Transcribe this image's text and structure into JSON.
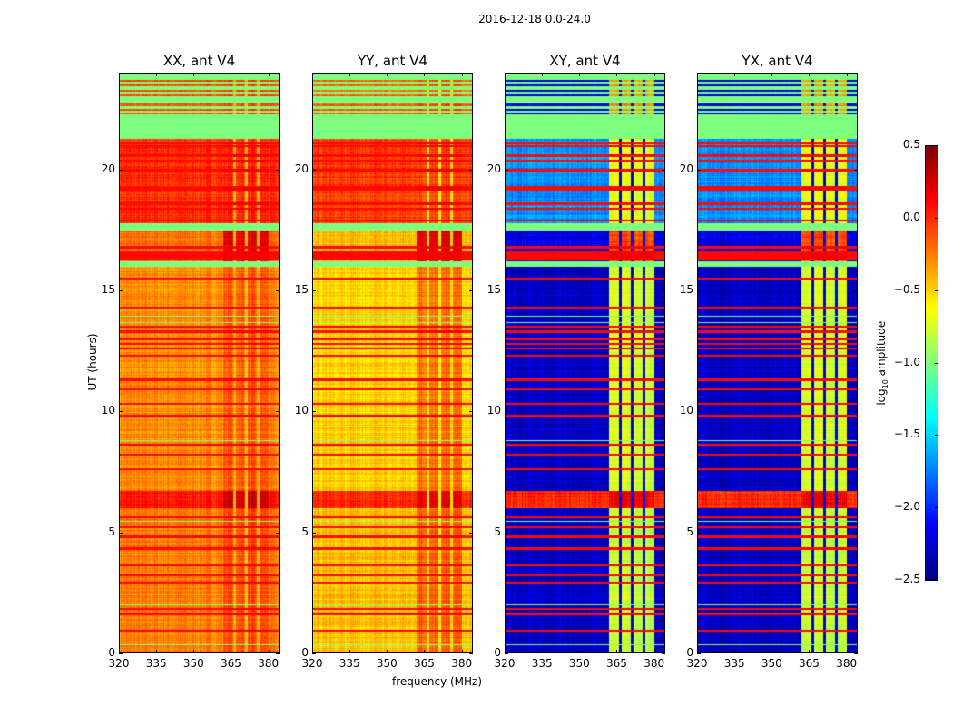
{
  "figure": {
    "suptitle": "2016-12-18 0.0-24.0",
    "xlabel": "frequency (MHz)",
    "ylabel": "UT (hours)",
    "colorbar_label": "log10 amplitude",
    "colorbar_label_base": "log",
    "colorbar_label_sub": "10",
    "colorbar_label_rest": " amplitude"
  },
  "chart_data": {
    "type": "heatmap",
    "colormap": "jet",
    "xlim": [
      320,
      384.5
    ],
    "ylim": [
      0,
      24
    ],
    "xticks": [
      320,
      335,
      350,
      365,
      380
    ],
    "yticks": [
      0,
      5,
      10,
      15,
      20
    ],
    "clim": [
      -2.5,
      0.5
    ],
    "colorbar_ticks": [
      "0.5",
      "0.0",
      "−0.5",
      "−1.0",
      "−1.5",
      "−2.0",
      "−2.5"
    ],
    "colorbar_tick_values": [
      0.5,
      0.0,
      -0.5,
      -1.0,
      -1.5,
      -2.0,
      -2.5
    ],
    "band_split_mhz": 362,
    "column_gaps_mhz": [
      366.6,
      371.5,
      376.3
    ],
    "upper_edge_mhz": 380.3,
    "flag_level": -1.0,
    "rfi_rows_hours": [
      0.9,
      1.6,
      1.8,
      2.9,
      3.2,
      3.6,
      4.3,
      4.8,
      5.2,
      5.6,
      7.6,
      8.2,
      8.6,
      9.8,
      10.3,
      10.9,
      11.3,
      12.3,
      12.6,
      12.8,
      13.0,
      13.3,
      13.5,
      14.3,
      15.5,
      16.3,
      16.4,
      16.5,
      16.6,
      16.8,
      17.9,
      18.4,
      18.6,
      19.2,
      19.3,
      20.0,
      20.4,
      20.6,
      21.0,
      21.1
    ],
    "flagged_rows_hours": [
      [
        16.0,
        16.2
      ],
      [
        17.5,
        17.8
      ],
      [
        13.9,
        13.95
      ],
      [
        13.65,
        13.7
      ],
      [
        8.75,
        8.8
      ],
      [
        5.4,
        5.45
      ],
      [
        1.95,
        2.0
      ],
      [
        0.3,
        0.33
      ]
    ],
    "data_rows_in_flag_hours": [
      22.35,
      22.5,
      22.7,
      23.1,
      23.3,
      23.5,
      23.7
    ],
    "panels": [
      {
        "title": "XX, ant V4",
        "gap_level": -0.45,
        "segments": [
          {
            "t": [
              0,
              6.0
            ],
            "low": -0.25,
            "high": -0.1
          },
          {
            "t": [
              6.0,
              6.7
            ],
            "low": 0.05,
            "high": 0.25
          },
          {
            "t": [
              6.7,
              16.0
            ],
            "low": -0.3,
            "high": -0.15
          },
          {
            "t": [
              16.0,
              17.8
            ],
            "low": -0.2,
            "high": 0.2
          },
          {
            "t": [
              17.8,
              21.3
            ],
            "low": -0.02,
            "high": 0.0
          },
          {
            "t": [
              21.3,
              24
            ],
            "flag": true,
            "low": -0.1,
            "high": -0.05
          }
        ]
      },
      {
        "title": "YY, ant V4",
        "gap_level": -0.55,
        "segments": [
          {
            "t": [
              0,
              6.0
            ],
            "low": -0.45,
            "high": -0.15
          },
          {
            "t": [
              6.0,
              6.7
            ],
            "low": 0.05,
            "high": 0.25
          },
          {
            "t": [
              6.7,
              16.0
            ],
            "low": -0.5,
            "high": -0.2
          },
          {
            "t": [
              16.0,
              17.8
            ],
            "low": -0.45,
            "high": 0.2
          },
          {
            "t": [
              17.8,
              21.3
            ],
            "low": -0.05,
            "high": -0.05
          },
          {
            "t": [
              21.3,
              24
            ],
            "flag": true,
            "low": -0.15,
            "high": -0.05
          }
        ]
      },
      {
        "title": "XY, ant V4",
        "gap_level": -2.2,
        "segments": [
          {
            "t": [
              0,
              6.0
            ],
            "low": -2.3,
            "high": -0.8
          },
          {
            "t": [
              6.0,
              6.7
            ],
            "low": 0.0,
            "high": 0.15
          },
          {
            "t": [
              6.7,
              16.0
            ],
            "low": -2.3,
            "high": -0.75
          },
          {
            "t": [
              16.0,
              17.8
            ],
            "low": -2.2,
            "high": -0.1
          },
          {
            "t": [
              17.8,
              21.3
            ],
            "low": -1.7,
            "high": -0.7
          },
          {
            "t": [
              21.3,
              24
            ],
            "flag": true,
            "low": -2.2,
            "high": -0.3
          }
        ]
      },
      {
        "title": "YX, ant V4",
        "gap_level": -2.2,
        "segments": [
          {
            "t": [
              0,
              6.0
            ],
            "low": -2.3,
            "high": -0.8
          },
          {
            "t": [
              6.0,
              6.7
            ],
            "low": 0.0,
            "high": 0.15
          },
          {
            "t": [
              6.7,
              16.0
            ],
            "low": -2.3,
            "high": -0.75
          },
          {
            "t": [
              16.0,
              17.8
            ],
            "low": -2.2,
            "high": -0.1
          },
          {
            "t": [
              17.8,
              21.3
            ],
            "low": -1.7,
            "high": -0.7
          },
          {
            "t": [
              21.3,
              24
            ],
            "flag": true,
            "low": -2.2,
            "high": -0.3
          }
        ]
      }
    ],
    "rfi_level": 0.1
  }
}
